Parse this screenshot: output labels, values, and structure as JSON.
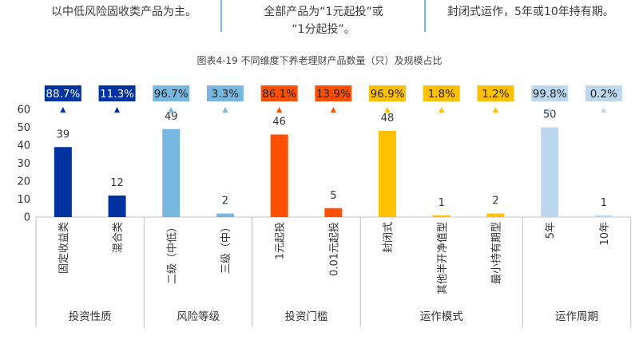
{
  "top_text": {
    "left": "以中低风险固收类产品为主。",
    "middle_line1": "全部产品为“1元起投”或",
    "middle_line2": "“1分起投”。",
    "right": "封闭式运作，5年或10年持有期。"
  },
  "chart_data": {
    "type": "bar",
    "title": "图表4-19 不同维度下养老理财产品数量（只）及规模占比",
    "ylim": [
      0,
      60
    ],
    "yticks": [
      0,
      10,
      20,
      30,
      40,
      50,
      60
    ],
    "grid": false,
    "groups": [
      {
        "name": "投资性质",
        "color": "#0033A0",
        "bars": [
          {
            "category": "固定收益类",
            "value": 39,
            "share": "88.7%"
          },
          {
            "category": "混合类",
            "value": 12,
            "share": "11.3%"
          }
        ]
      },
      {
        "name": "风险等级",
        "color": "#78B8E0",
        "bars": [
          {
            "category": "二级（中低）",
            "value": 49,
            "share": "96.7%"
          },
          {
            "category": "三级（中）",
            "value": 2,
            "share": "3.3%"
          }
        ]
      },
      {
        "name": "投资门槛",
        "color": "#FF4F00",
        "bars": [
          {
            "category": "1元起投",
            "value": 46,
            "share": "86.1%"
          },
          {
            "category": "0.01元起投",
            "value": 5,
            "share": "13.9%"
          }
        ]
      },
      {
        "name": "运作模式",
        "color": "#FFC000",
        "bars": [
          {
            "category": "封闭式",
            "value": 48,
            "share": "96.9%"
          },
          {
            "category": "其他半开净值型",
            "value": 1,
            "share": "1.8%"
          },
          {
            "category": "最小持有期型",
            "value": 2,
            "share": "1.2%"
          }
        ]
      },
      {
        "name": "运作周期",
        "color": "#BDD7EE",
        "bars": [
          {
            "category": "5年",
            "value": 50,
            "share": "99.8%"
          },
          {
            "category": "10年",
            "value": 1,
            "share": "0.2%"
          }
        ]
      }
    ]
  }
}
